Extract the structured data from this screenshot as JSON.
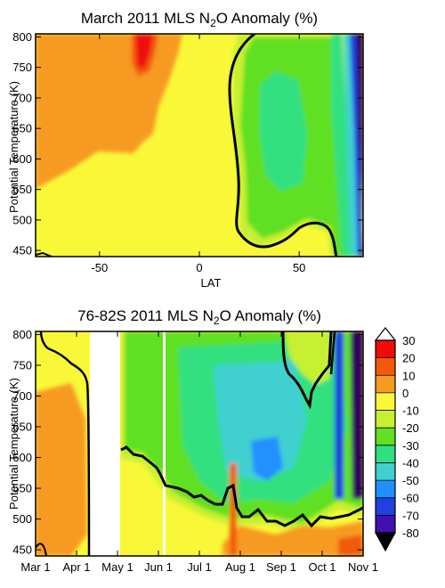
{
  "chart_data": [
    {
      "type": "heatmap",
      "title": "March 2011 MLS N₂O Anomaly (%)",
      "xlabel": "LAT",
      "ylabel": "Potential Temperature (K)",
      "xlim": [
        -82,
        82
      ],
      "ylim": [
        440,
        805
      ],
      "x_ticks": [
        -50,
        0,
        50
      ],
      "x_tick_labels": [
        "-50",
        "0",
        "50"
      ],
      "y_ticks": [
        450,
        500,
        550,
        600,
        650,
        700,
        750,
        800
      ],
      "y_tick_labels": [
        "450",
        "500",
        "550",
        "600",
        "650",
        "700",
        "750",
        "800"
      ],
      "contour_level": 0,
      "regions": [
        {
          "value": 0,
          "x": [
            -82,
            82
          ],
          "y": [
            440,
            805
          ],
          "desc": "background"
        },
        {
          "value": 15,
          "x": [
            -82,
            -18
          ],
          "y": [
            560,
            805
          ]
        },
        {
          "value": 25,
          "x": [
            -45,
            -30
          ],
          "y": [
            740,
            805
          ]
        },
        {
          "value": -10,
          "x": [
            15,
            70
          ],
          "y": [
            460,
            800
          ]
        },
        {
          "value": -20,
          "x": [
            22,
            55
          ],
          "y": [
            560,
            760
          ]
        },
        {
          "value": -25,
          "x": [
            55,
            70
          ],
          "y": [
            440,
            805
          ]
        },
        {
          "value": -40,
          "x": [
            68,
            74
          ],
          "y": [
            440,
            805
          ]
        },
        {
          "value": -60,
          "x": [
            73,
            77
          ],
          "y": [
            440,
            805
          ]
        },
        {
          "value": -75,
          "x": [
            76,
            82
          ],
          "y": [
            440,
            805
          ]
        }
      ]
    },
    {
      "type": "heatmap",
      "title": "76-82S 2011 MLS N₂O Anomaly (%)",
      "xlabel": "",
      "ylabel": "Potential Temperature (K)",
      "xlim": [
        0,
        8
      ],
      "ylim": [
        440,
        805
      ],
      "x_ticks": [
        0,
        1,
        2,
        3,
        4,
        5,
        6,
        7,
        8
      ],
      "x_tick_labels": [
        "Mar 1",
        "Apr 1",
        "May 1",
        "Jun 1",
        "Jul 1",
        "Aug 1",
        "Sep 1",
        "Oct 1",
        "Nov 1"
      ],
      "y_ticks": [
        450,
        500,
        550,
        600,
        650,
        700,
        750,
        800
      ],
      "y_tick_labels": [
        "450",
        "500",
        "550",
        "600",
        "650",
        "700",
        "750",
        "800"
      ],
      "contour_level": 0,
      "no_data": [
        [
          1.1,
          1.85
        ],
        [
          3.1,
          3.16
        ]
      ],
      "regions": [
        {
          "value": 0,
          "x": [
            0,
            8
          ],
          "y": [
            440,
            805
          ],
          "desc": "background"
        },
        {
          "value": 15,
          "x": [
            0,
            1.1
          ],
          "y": [
            520,
            740
          ]
        },
        {
          "value": -15,
          "x": [
            1.85,
            8
          ],
          "y": [
            540,
            805
          ]
        },
        {
          "value": -25,
          "x": [
            3.5,
            7.7
          ],
          "y": [
            560,
            780
          ]
        },
        {
          "value": -40,
          "x": [
            5.5,
            6.5
          ],
          "y": [
            540,
            600
          ]
        },
        {
          "value": -60,
          "x": [
            7.1,
            7.4
          ],
          "y": [
            560,
            805
          ]
        },
        {
          "value": -75,
          "x": [
            7.7,
            8
          ],
          "y": [
            440,
            805
          ]
        },
        {
          "value": 15,
          "x": [
            4.5,
            8
          ],
          "y": [
            440,
            480
          ]
        }
      ]
    }
  ],
  "colorbar": {
    "levels": [
      30,
      20,
      10,
      0,
      -10,
      -20,
      -30,
      -40,
      -50,
      -60,
      -70,
      -80
    ],
    "labels": [
      "30",
      "20",
      "10",
      "0",
      "-10",
      "-20",
      "-30",
      "-40",
      "-50",
      "-60",
      "-70",
      "-80"
    ],
    "colors": [
      "#f00a0a",
      "#f25a0a",
      "#f79a20",
      "#f8f838",
      "#c8f030",
      "#60e020",
      "#30e080",
      "#40d0d0",
      "#2090ff",
      "#2040e0",
      "#4010b0",
      "#300060",
      "#000000"
    ]
  }
}
